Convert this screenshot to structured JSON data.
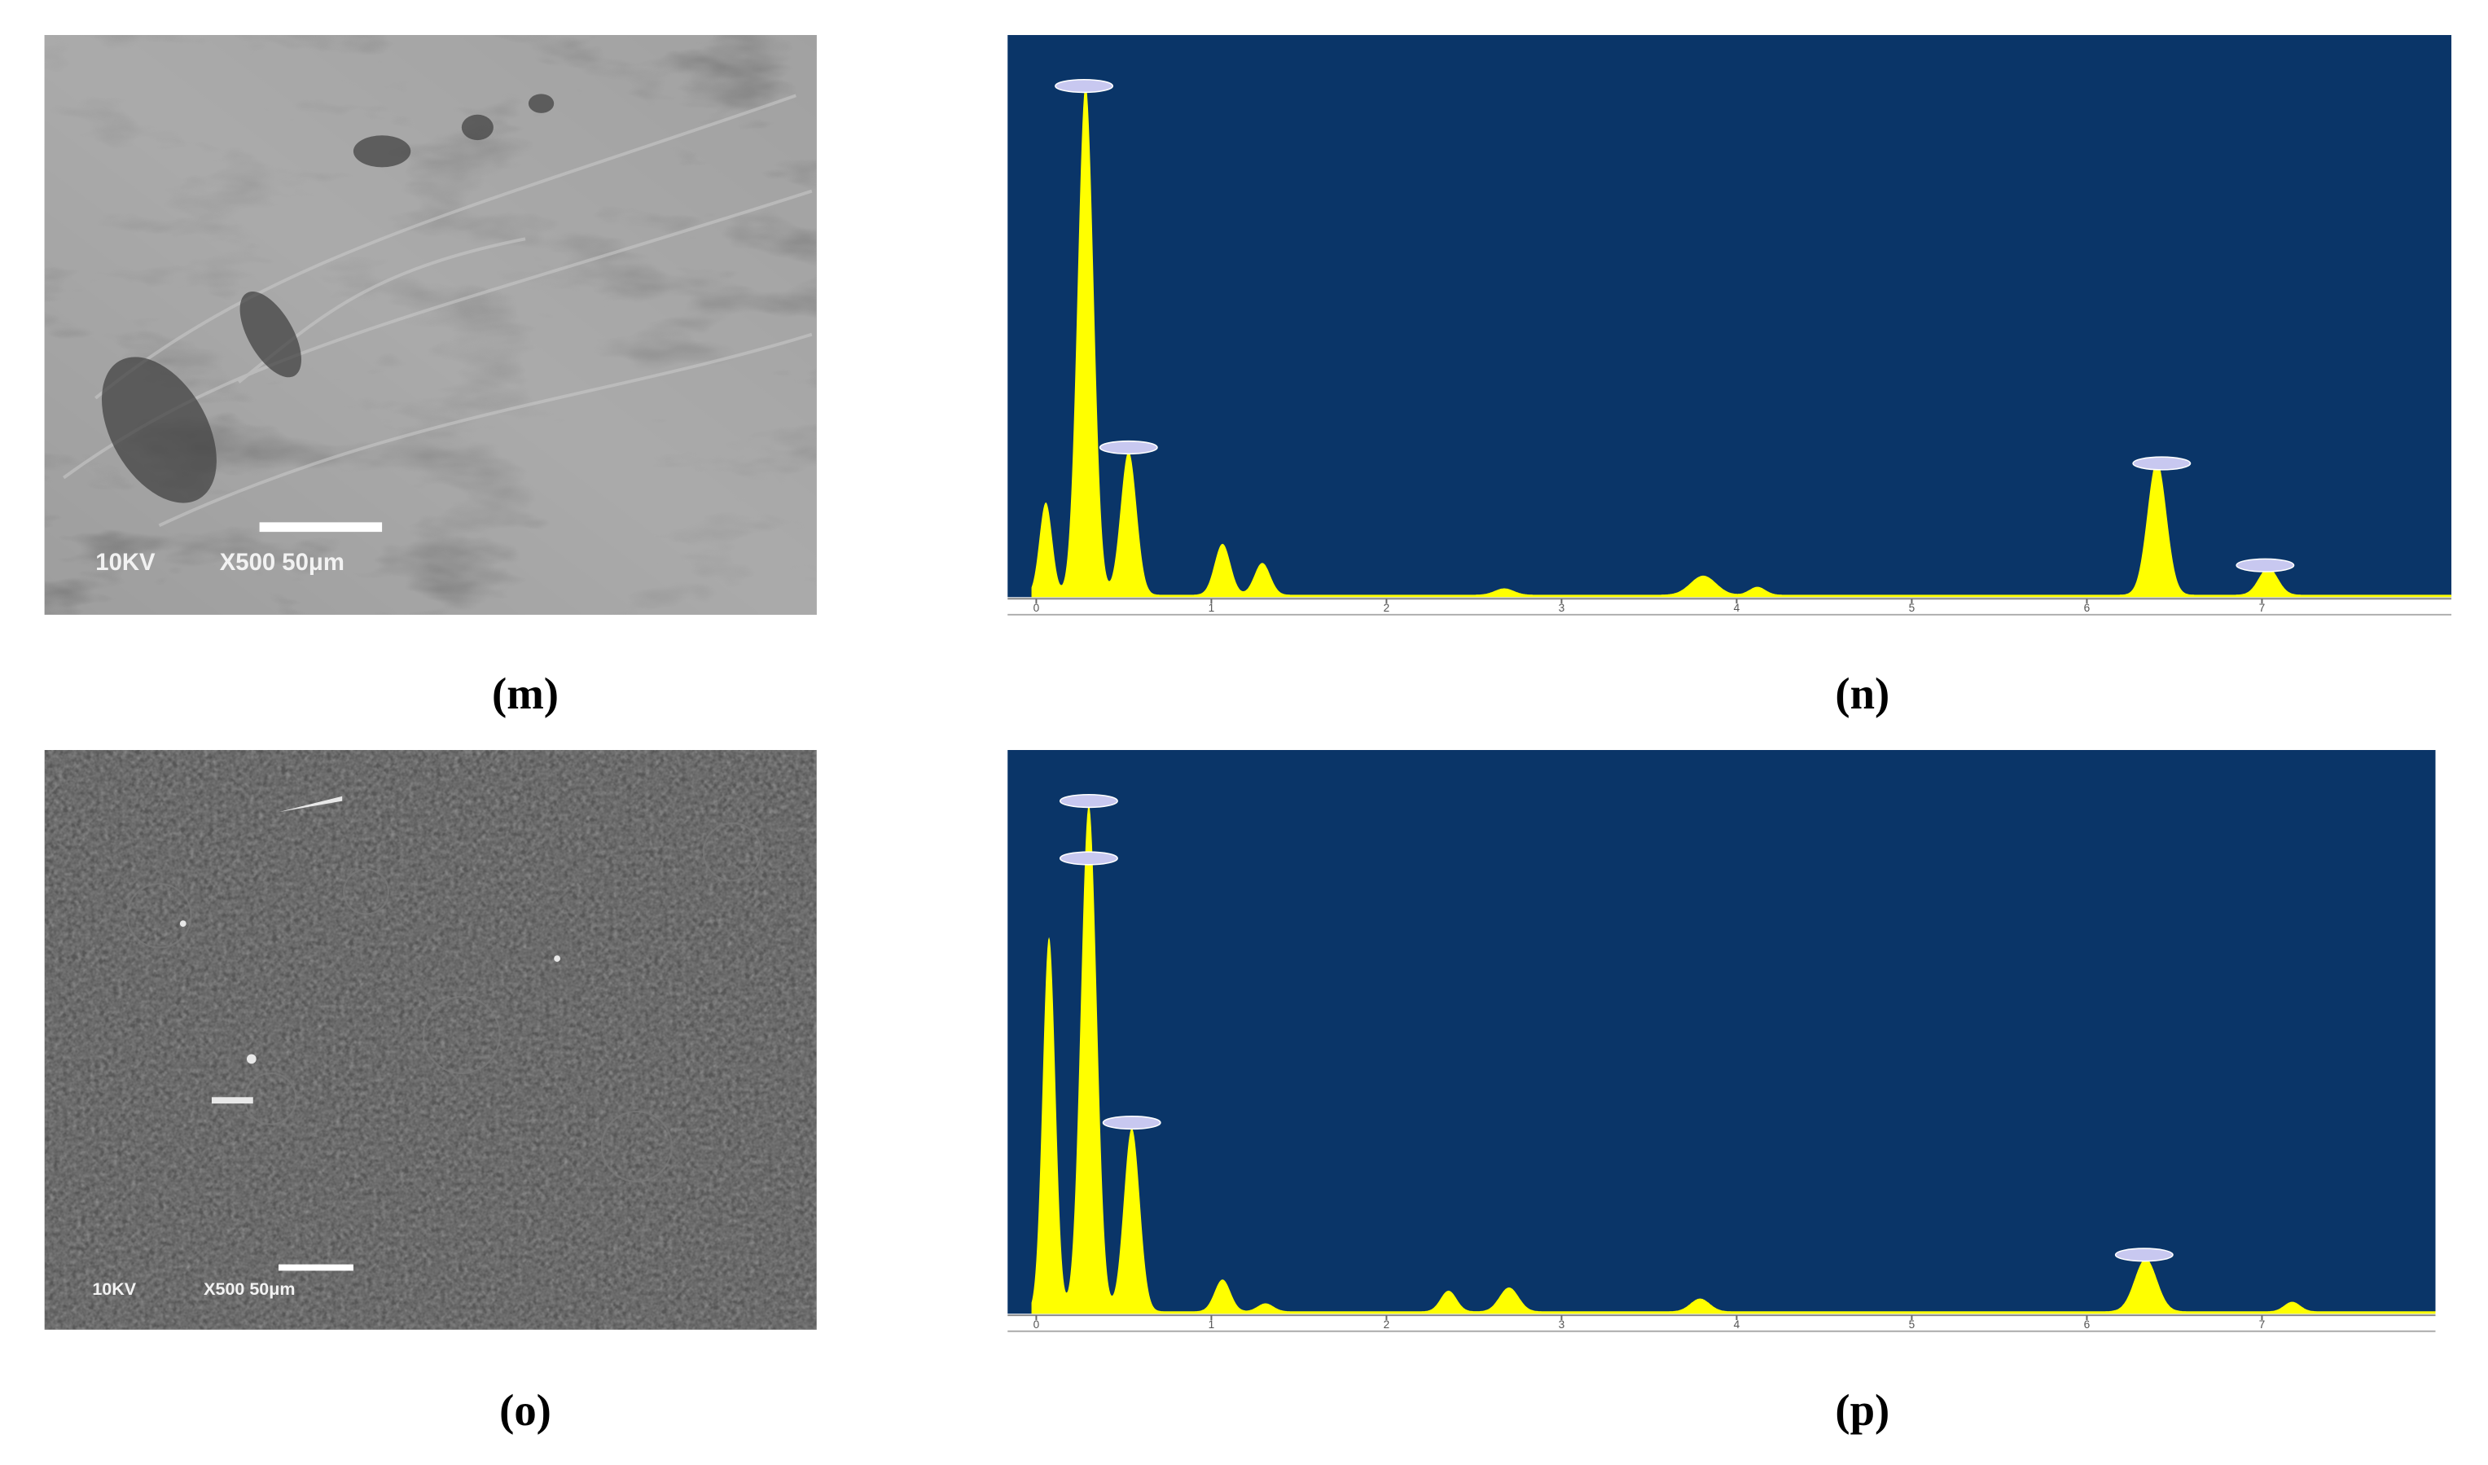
{
  "panels": [
    {
      "label": "(m)",
      "kind": "sem",
      "annotations": [
        "10KV",
        "X500  50μm"
      ]
    },
    {
      "label": "(n)",
      "kind": "eds",
      "ticks": [
        "0",
        "1",
        "2",
        "3",
        "4",
        "5",
        "6",
        "7"
      ]
    },
    {
      "label": "(o)",
      "kind": "sem",
      "annotations": [
        "10KV",
        "X500  50μm"
      ]
    },
    {
      "label": "(p)",
      "kind": "eds",
      "ticks": [
        "0",
        "1",
        "2",
        "3",
        "4",
        "5",
        "6",
        "7"
      ]
    }
  ]
}
